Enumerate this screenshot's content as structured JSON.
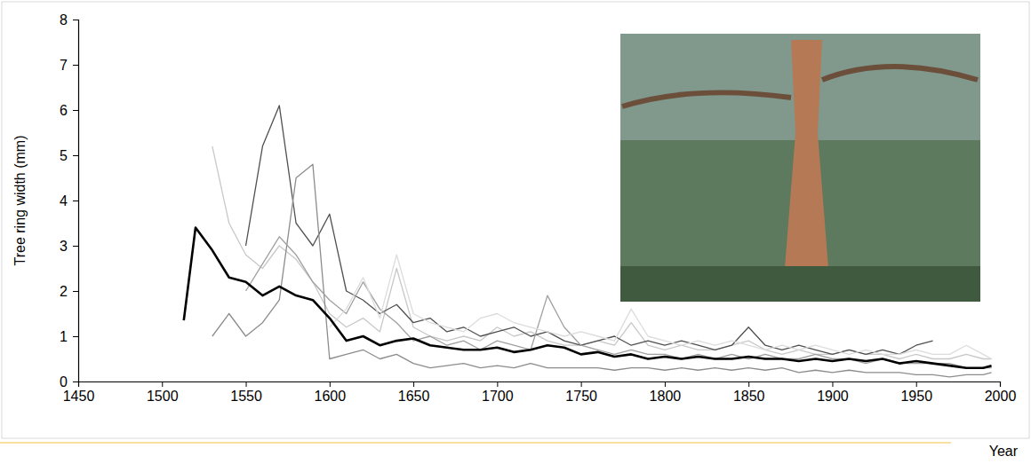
{
  "chart_data": {
    "type": "line",
    "ylabel": "Tree ring width (mm)",
    "xlabel": "Year",
    "xlim": [
      1450,
      2000
    ],
    "xticks": [
      1450,
      1500,
      1550,
      1600,
      1650,
      1700,
      1750,
      1800,
      1850,
      1900,
      1950,
      2000
    ],
    "ylim": [
      0,
      8
    ],
    "yticks": [
      0,
      1,
      2,
      3,
      4,
      5,
      6,
      7,
      8
    ],
    "x": [
      1513,
      1520,
      1530,
      1540,
      1550,
      1560,
      1570,
      1580,
      1590,
      1600,
      1610,
      1620,
      1630,
      1640,
      1650,
      1660,
      1670,
      1680,
      1690,
      1700,
      1710,
      1720,
      1730,
      1740,
      1750,
      1760,
      1770,
      1780,
      1790,
      1800,
      1810,
      1820,
      1830,
      1840,
      1850,
      1860,
      1870,
      1880,
      1890,
      1900,
      1910,
      1920,
      1930,
      1940,
      1950,
      1960,
      1970,
      1980,
      1990,
      1995
    ],
    "series": [
      {
        "color": "#c8c8c8",
        "values": [
          null,
          null,
          5.2,
          3.5,
          2.8,
          2.5,
          3.0,
          2.7,
          2.2,
          1.5,
          1.2,
          1.4,
          1.1,
          2.5,
          1.2,
          1.0,
          0.9,
          1.0,
          0.9,
          1.2,
          1.0,
          1.1,
          0.9,
          0.8,
          0.8,
          0.9,
          0.8,
          1.3,
          0.8,
          0.7,
          0.8,
          0.7,
          0.7,
          0.8,
          0.9,
          0.7,
          0.6,
          0.7,
          0.6,
          0.6,
          0.7,
          0.6,
          0.6,
          0.5,
          0.6,
          0.5,
          0.5,
          0.6,
          0.5,
          0.5
        ]
      },
      {
        "color": "#505050",
        "values": [
          null,
          null,
          null,
          null,
          3.0,
          5.2,
          6.1,
          3.5,
          3.0,
          3.7,
          2.0,
          1.8,
          1.5,
          1.7,
          1.3,
          1.4,
          1.1,
          1.2,
          1.0,
          1.1,
          1.2,
          1.0,
          1.1,
          0.9,
          0.8,
          0.9,
          1.0,
          0.8,
          0.9,
          0.8,
          0.9,
          0.8,
          0.7,
          0.8,
          1.2,
          0.8,
          0.7,
          0.8,
          0.7,
          0.6,
          0.7,
          0.6,
          0.7,
          0.6,
          0.8,
          0.9,
          null,
          null,
          null,
          null
        ]
      },
      {
        "color": "#8c8c8c",
        "values": [
          null,
          null,
          1.0,
          1.5,
          1.0,
          1.3,
          1.8,
          4.5,
          4.8,
          0.5,
          0.6,
          0.7,
          0.5,
          0.6,
          0.4,
          0.3,
          0.35,
          0.4,
          0.3,
          0.35,
          0.3,
          0.4,
          0.3,
          0.3,
          0.3,
          0.3,
          0.25,
          0.3,
          0.3,
          0.25,
          0.3,
          0.25,
          0.3,
          0.25,
          0.3,
          0.25,
          0.3,
          0.2,
          0.25,
          0.2,
          0.25,
          0.2,
          0.2,
          0.2,
          0.15,
          0.15,
          0.1,
          0.15,
          0.15,
          0.2
        ]
      },
      {
        "color": "#a0a0a0",
        "values": [
          null,
          null,
          null,
          null,
          2.0,
          2.6,
          3.2,
          2.8,
          2.2,
          1.8,
          1.5,
          2.2,
          1.6,
          1.3,
          0.9,
          1.0,
          0.8,
          0.9,
          0.7,
          0.9,
          0.8,
          0.7,
          1.9,
          1.2,
          0.8,
          0.7,
          0.6,
          0.7,
          0.6,
          0.6,
          0.5,
          0.6,
          0.5,
          0.6,
          0.5,
          0.6,
          0.5,
          0.5,
          0.6,
          0.5,
          0.5,
          0.4,
          0.5,
          0.4,
          0.4,
          0.4,
          0.4,
          0.3,
          0.3,
          0.3
        ]
      },
      {
        "color": "#dcdcdc",
        "values": [
          null,
          null,
          null,
          null,
          null,
          null,
          null,
          null,
          null,
          1.2,
          1.6,
          2.3,
          1.4,
          2.8,
          1.5,
          1.3,
          1.2,
          1.1,
          1.4,
          1.5,
          1.3,
          1.2,
          1.1,
          1.0,
          1.1,
          1.0,
          0.9,
          1.6,
          1.0,
          0.9,
          0.8,
          0.9,
          0.8,
          0.9,
          0.8,
          0.7,
          0.8,
          0.7,
          0.8,
          0.7,
          0.6,
          0.7,
          0.6,
          0.6,
          0.7,
          0.6,
          0.6,
          0.8,
          0.6,
          0.5
        ]
      },
      {
        "color": "#000000",
        "values": [
          1.35,
          3.4,
          2.9,
          2.3,
          2.2,
          1.9,
          2.1,
          1.9,
          1.8,
          1.4,
          0.9,
          1.0,
          0.8,
          0.9,
          0.95,
          0.8,
          0.75,
          0.7,
          0.7,
          0.75,
          0.65,
          0.7,
          0.8,
          0.75,
          0.6,
          0.65,
          0.55,
          0.6,
          0.5,
          0.55,
          0.5,
          0.55,
          0.5,
          0.5,
          0.55,
          0.5,
          0.5,
          0.45,
          0.5,
          0.45,
          0.5,
          0.45,
          0.5,
          0.4,
          0.45,
          0.4,
          0.35,
          0.3,
          0.3,
          0.35
        ]
      }
    ]
  }
}
